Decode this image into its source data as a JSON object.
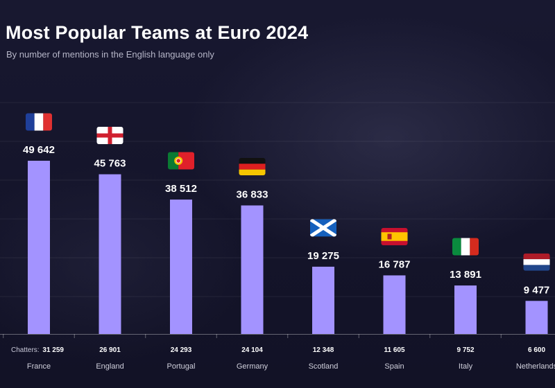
{
  "title": "Most Popular Teams at Euro 2024",
  "subtitle": "By number of mentions in the English language only",
  "chatters_label": "Chatters:",
  "colors": {
    "bar": "#a393ff",
    "background": "#16162a"
  },
  "chart_data": {
    "type": "bar",
    "title": "Most Popular Teams at Euro 2024",
    "subtitle": "By number of mentions in the English language only",
    "categories": [
      "France",
      "England",
      "Portugal",
      "Germany",
      "Scotland",
      "Spain",
      "Italy",
      "Netherlands"
    ],
    "values": [
      49642,
      45763,
      38512,
      36833,
      19275,
      16787,
      13891,
      9477
    ],
    "value_labels": [
      "49 642",
      "45 763",
      "38 512",
      "36 833",
      "19 275",
      "16 787",
      "13 891",
      "9 477"
    ],
    "chatters": [
      "31 259",
      "26 901",
      "24 293",
      "24 104",
      "12 348",
      "11 605",
      "9 752",
      "6 600"
    ],
    "flags": [
      "france-flag-icon",
      "england-flag-icon",
      "portugal-flag-icon",
      "germany-flag-icon",
      "scotland-flag-icon",
      "spain-flag-icon",
      "italy-flag-icon",
      "netherlands-flag-icon"
    ],
    "ylim": [
      0,
      50000
    ],
    "grid": true,
    "legend": "none"
  }
}
